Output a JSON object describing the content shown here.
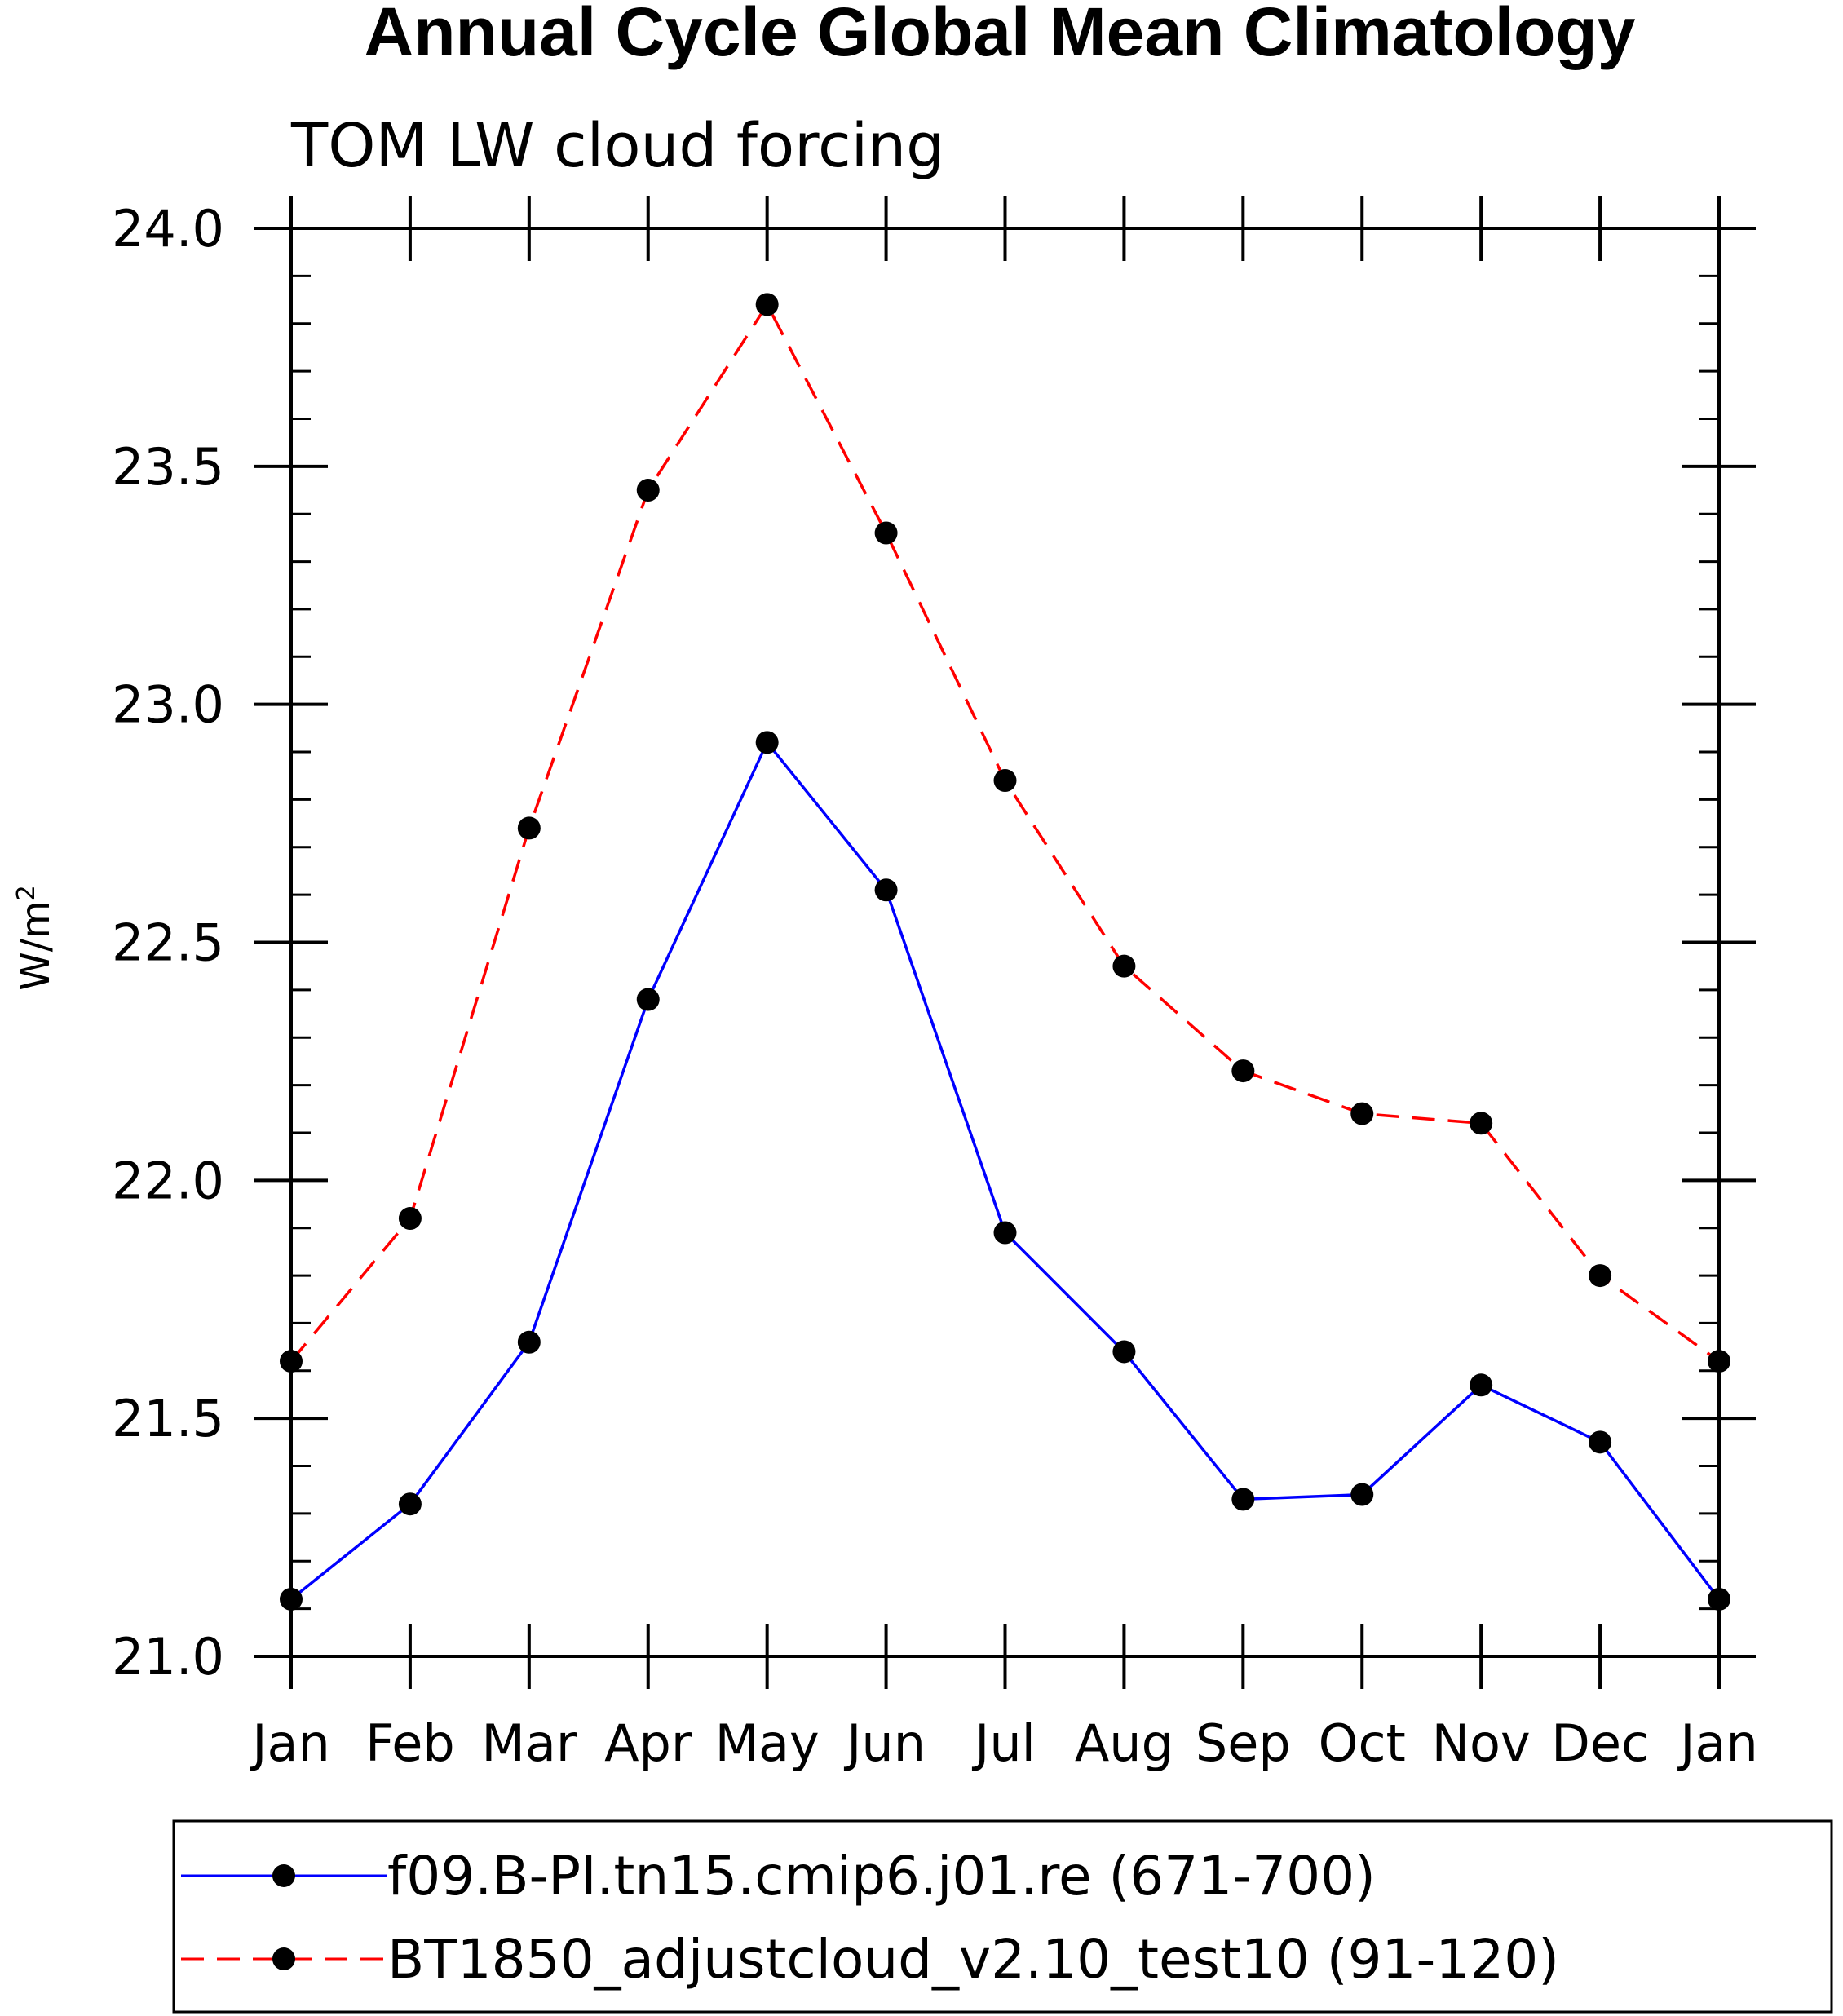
{
  "chart_data": {
    "type": "line",
    "title": "Annual Cycle Global Mean Climatology",
    "subtitle": "TOM LW cloud forcing",
    "ylabel_base": "W/m",
    "ylabel_sup": "2",
    "xlabel": "",
    "categories": [
      "Jan",
      "Feb",
      "Mar",
      "Apr",
      "May",
      "Jun",
      "Jul",
      "Aug",
      "Sep",
      "Oct",
      "Nov",
      "Dec",
      "Jan"
    ],
    "ylim": [
      21.0,
      24.0
    ],
    "yticks": [
      "21.0",
      "21.5",
      "22.0",
      "22.5",
      "23.0",
      "23.5",
      "24.0"
    ],
    "series": [
      {
        "name": "f09.B-PI.tn15.cmip6.j01.re (671-700)",
        "color": "#0000ff",
        "style": "solid",
        "values": [
          21.12,
          21.32,
          21.66,
          22.38,
          22.92,
          22.61,
          21.89,
          21.64,
          21.33,
          21.34,
          21.57,
          21.45,
          21.12
        ]
      },
      {
        "name": "BT1850_adjustcloud_v2.10_test10 (91-120)",
        "color": "#ff0000",
        "style": "dashed",
        "values": [
          21.62,
          21.92,
          22.74,
          23.45,
          23.84,
          23.36,
          22.84,
          22.45,
          22.23,
          22.14,
          22.12,
          21.8,
          21.62
        ]
      }
    ]
  }
}
